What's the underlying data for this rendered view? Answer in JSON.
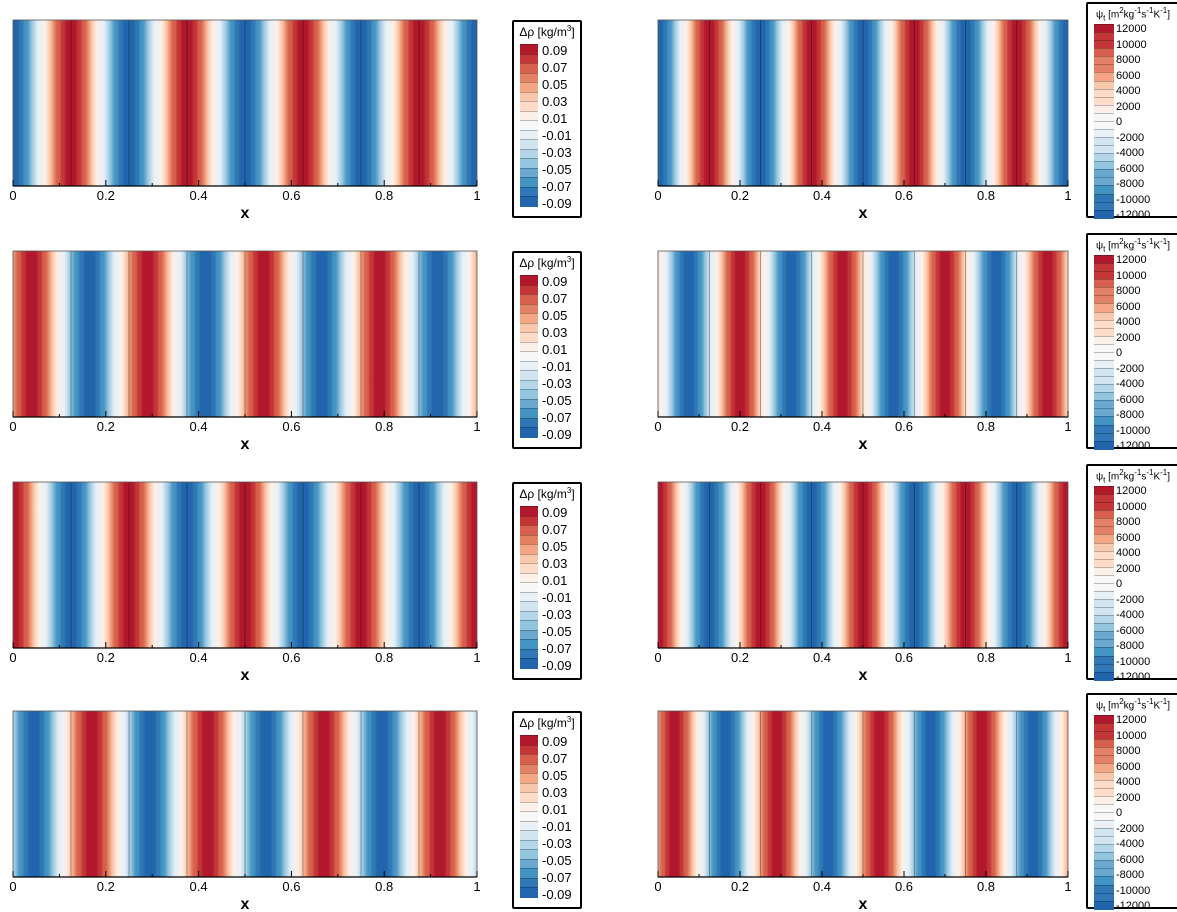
{
  "colors": {
    "scale": [
      "#b2182b",
      "#c43538",
      "#d6604d",
      "#e38163",
      "#f4a582",
      "#f8c8ad",
      "#fddbc7",
      "#fbefe8",
      "#f7f7f7",
      "#e9f1f6",
      "#d1e5f0",
      "#b5d5e8",
      "#92c5de",
      "#6aa8cf",
      "#4393c3",
      "#2f78b5",
      "#2166ac"
    ]
  },
  "chart_data": [
    {
      "id": "rho-1",
      "type": "heatmap",
      "panel": "rho",
      "xlabel": "x",
      "x_ticks": [
        "0",
        "0.2",
        "0.4",
        "0.6",
        "0.8",
        "1"
      ],
      "xlim": [
        0,
        1
      ],
      "field": "cos",
      "wavelength": 0.25,
      "phase_x": 0.125,
      "amplitude": 0.09,
      "cell_lines": [
        0.125,
        0.25,
        0.375,
        0.5,
        0.625,
        0.75,
        0.875
      ]
    },
    {
      "id": "psi-1",
      "type": "heatmap",
      "panel": "psi",
      "xlabel": "x",
      "x_ticks": [
        "0",
        "0.2",
        "0.4",
        "0.6",
        "0.8",
        "1"
      ],
      "xlim": [
        0,
        1
      ],
      "field": "cos",
      "wavelength": 0.25,
      "phase_x": 0.125,
      "amplitude": 12000,
      "cell_lines": [
        0.125,
        0.25,
        0.375,
        0.5,
        0.625,
        0.75,
        0.875
      ]
    },
    {
      "id": "rho-2",
      "type": "heatmap",
      "panel": "rho",
      "xlabel": "x",
      "x_ticks": [
        "0",
        "0.2",
        "0.4",
        "0.6",
        "0.8",
        "1"
      ],
      "xlim": [
        0,
        1
      ],
      "field": "cos",
      "wavelength": 0.25,
      "phase_x": 0.04,
      "amplitude": 0.09,
      "cell_lines": [
        0.125,
        0.25,
        0.375,
        0.5,
        0.625,
        0.75,
        0.875
      ]
    },
    {
      "id": "psi-2",
      "type": "heatmap",
      "panel": "psi",
      "xlabel": "x",
      "x_ticks": [
        "0",
        "0.2",
        "0.4",
        "0.6",
        "0.8",
        "1"
      ],
      "xlim": [
        0,
        1
      ],
      "field": "cos",
      "wavelength": 0.25,
      "phase_x": 0.2,
      "amplitude": 12000,
      "cell_lines": [
        0.125,
        0.25,
        0.375,
        0.5,
        0.625,
        0.75,
        0.875
      ]
    },
    {
      "id": "rho-3",
      "type": "heatmap",
      "panel": "rho",
      "xlabel": "x",
      "x_ticks": [
        "0",
        "0.2",
        "0.4",
        "0.6",
        "0.8",
        "1"
      ],
      "xlim": [
        0,
        1
      ],
      "field": "cos",
      "wavelength": 0.25,
      "phase_x": 0.0,
      "amplitude": 0.09,
      "cell_lines": [
        0.125,
        0.25,
        0.375,
        0.5,
        0.625,
        0.75,
        0.875
      ]
    },
    {
      "id": "psi-3",
      "type": "heatmap",
      "panel": "psi",
      "xlabel": "x",
      "x_ticks": [
        "0",
        "0.2",
        "0.4",
        "0.6",
        "0.8",
        "1"
      ],
      "xlim": [
        0,
        1
      ],
      "field": "cos",
      "wavelength": 0.25,
      "phase_x": 0.0,
      "amplitude": 12000,
      "cell_lines": [
        0.125,
        0.25,
        0.375,
        0.5,
        0.625,
        0.75,
        0.875
      ]
    },
    {
      "id": "rho-4",
      "type": "heatmap",
      "panel": "rho",
      "xlabel": "x",
      "x_ticks": [
        "0",
        "0.2",
        "0.4",
        "0.6",
        "0.8",
        "1"
      ],
      "xlim": [
        0,
        1
      ],
      "field": "cos",
      "wavelength": 0.25,
      "phase_x": 0.17,
      "amplitude": 0.09,
      "cell_lines": [
        0.125,
        0.25,
        0.375,
        0.5,
        0.625,
        0.75,
        0.875
      ]
    },
    {
      "id": "psi-4",
      "type": "heatmap",
      "panel": "psi",
      "xlabel": "x",
      "x_ticks": [
        "0",
        "0.2",
        "0.4",
        "0.6",
        "0.8",
        "1"
      ],
      "xlim": [
        0,
        1
      ],
      "field": "cos",
      "wavelength": 0.25,
      "phase_x": 0.04,
      "amplitude": 12000,
      "cell_lines": [
        0.125,
        0.25,
        0.375,
        0.5,
        0.625,
        0.75,
        0.875
      ]
    }
  ],
  "legends": {
    "rho": {
      "symbol": "Δρ",
      "unit": "[kg/m",
      "unit_sup": "3",
      "unit_end": "]",
      "levels": [
        "0.09",
        "0.07",
        "0.05",
        "0.03",
        "0.01",
        "-0.01",
        "-0.03",
        "-0.05",
        "-0.07",
        "-0.09"
      ]
    },
    "psi": {
      "symbol": "ψ",
      "symbol_sub": "t",
      "unit_parts": [
        "[m",
        "2",
        "kg",
        "-1",
        "s",
        "-1",
        "K",
        "-1",
        "]"
      ],
      "levels": [
        "12000",
        "10000",
        "8000",
        "6000",
        "4000",
        "2000",
        "0",
        "-2000",
        "-4000",
        "-6000",
        "-8000",
        "-10000",
        "-12000"
      ]
    }
  }
}
